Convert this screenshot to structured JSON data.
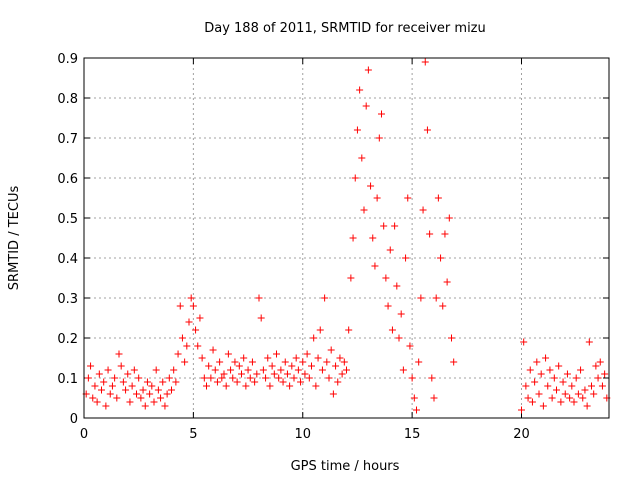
{
  "chart_data": {
    "type": "scatter",
    "title": "Day 188 of 2011, SRMTID for receiver mizu",
    "xlabel": "GPS time / hours",
    "ylabel": "SRMTID / TECUs",
    "xlim": [
      0,
      24
    ],
    "ylim": [
      0,
      0.9
    ],
    "xticks": [
      0,
      5,
      10,
      15,
      20
    ],
    "yticks": [
      0,
      0.1,
      0.2,
      0.3,
      0.4,
      0.5,
      0.6,
      0.7,
      0.8,
      0.9
    ],
    "grid": true,
    "marker": "+",
    "series": [
      {
        "name": "SRMTID",
        "color": "#ff0000",
        "points": [
          [
            0.1,
            0.06
          ],
          [
            0.2,
            0.1
          ],
          [
            0.3,
            0.13
          ],
          [
            0.4,
            0.05
          ],
          [
            0.5,
            0.08
          ],
          [
            0.6,
            0.04
          ],
          [
            0.7,
            0.11
          ],
          [
            0.8,
            0.07
          ],
          [
            0.9,
            0.09
          ],
          [
            1.0,
            0.03
          ],
          [
            1.1,
            0.12
          ],
          [
            1.2,
            0.06
          ],
          [
            1.3,
            0.08
          ],
          [
            1.4,
            0.1
          ],
          [
            1.5,
            0.05
          ],
          [
            1.6,
            0.16
          ],
          [
            1.7,
            0.13
          ],
          [
            1.8,
            0.09
          ],
          [
            1.9,
            0.07
          ],
          [
            2.0,
            0.11
          ],
          [
            2.1,
            0.04
          ],
          [
            2.2,
            0.08
          ],
          [
            2.3,
            0.12
          ],
          [
            2.4,
            0.06
          ],
          [
            2.5,
            0.1
          ],
          [
            2.6,
            0.05
          ],
          [
            2.7,
            0.07
          ],
          [
            2.8,
            0.03
          ],
          [
            2.9,
            0.09
          ],
          [
            3.0,
            0.06
          ],
          [
            3.1,
            0.08
          ],
          [
            3.2,
            0.04
          ],
          [
            3.3,
            0.12
          ],
          [
            3.4,
            0.07
          ],
          [
            3.5,
            0.05
          ],
          [
            3.6,
            0.09
          ],
          [
            3.7,
            0.03
          ],
          [
            3.8,
            0.06
          ],
          [
            3.9,
            0.1
          ],
          [
            4.0,
            0.07
          ],
          [
            4.1,
            0.12
          ],
          [
            4.2,
            0.09
          ],
          [
            4.3,
            0.16
          ],
          [
            4.4,
            0.28
          ],
          [
            4.5,
            0.2
          ],
          [
            4.6,
            0.14
          ],
          [
            4.7,
            0.18
          ],
          [
            4.8,
            0.24
          ],
          [
            4.9,
            0.3
          ],
          [
            5.0,
            0.28
          ],
          [
            5.1,
            0.22
          ],
          [
            5.2,
            0.18
          ],
          [
            5.3,
            0.25
          ],
          [
            5.4,
            0.15
          ],
          [
            5.5,
            0.1
          ],
          [
            5.6,
            0.08
          ],
          [
            5.7,
            0.13
          ],
          [
            5.8,
            0.1
          ],
          [
            5.9,
            0.17
          ],
          [
            6.0,
            0.12
          ],
          [
            6.1,
            0.09
          ],
          [
            6.2,
            0.14
          ],
          [
            6.3,
            0.1
          ],
          [
            6.4,
            0.11
          ],
          [
            6.5,
            0.08
          ],
          [
            6.6,
            0.16
          ],
          [
            6.7,
            0.12
          ],
          [
            6.8,
            0.1
          ],
          [
            6.9,
            0.14
          ],
          [
            7.0,
            0.09
          ],
          [
            7.1,
            0.13
          ],
          [
            7.2,
            0.11
          ],
          [
            7.3,
            0.15
          ],
          [
            7.4,
            0.08
          ],
          [
            7.5,
            0.12
          ],
          [
            7.6,
            0.1
          ],
          [
            7.7,
            0.14
          ],
          [
            7.8,
            0.09
          ],
          [
            7.9,
            0.11
          ],
          [
            8.0,
            0.3
          ],
          [
            8.1,
            0.25
          ],
          [
            8.2,
            0.12
          ],
          [
            8.3,
            0.1
          ],
          [
            8.4,
            0.15
          ],
          [
            8.5,
            0.08
          ],
          [
            8.6,
            0.13
          ],
          [
            8.7,
            0.11
          ],
          [
            8.8,
            0.16
          ],
          [
            8.9,
            0.1
          ],
          [
            9.0,
            0.12
          ],
          [
            9.1,
            0.09
          ],
          [
            9.2,
            0.14
          ],
          [
            9.3,
            0.11
          ],
          [
            9.4,
            0.08
          ],
          [
            9.5,
            0.13
          ],
          [
            9.6,
            0.1
          ],
          [
            9.7,
            0.15
          ],
          [
            9.8,
            0.12
          ],
          [
            9.9,
            0.09
          ],
          [
            10.0,
            0.14
          ],
          [
            10.1,
            0.11
          ],
          [
            10.2,
            0.16
          ],
          [
            10.3,
            0.1
          ],
          [
            10.4,
            0.13
          ],
          [
            10.5,
            0.2
          ],
          [
            10.6,
            0.08
          ],
          [
            10.7,
            0.15
          ],
          [
            10.8,
            0.22
          ],
          [
            10.9,
            0.12
          ],
          [
            11.0,
            0.3
          ],
          [
            11.1,
            0.14
          ],
          [
            11.2,
            0.1
          ],
          [
            11.3,
            0.17
          ],
          [
            11.4,
            0.06
          ],
          [
            11.5,
            0.13
          ],
          [
            11.6,
            0.09
          ],
          [
            11.7,
            0.15
          ],
          [
            11.8,
            0.11
          ],
          [
            11.9,
            0.14
          ],
          [
            12.0,
            0.12
          ],
          [
            12.1,
            0.22
          ],
          [
            12.2,
            0.35
          ],
          [
            12.3,
            0.45
          ],
          [
            12.4,
            0.6
          ],
          [
            12.5,
            0.72
          ],
          [
            12.6,
            0.82
          ],
          [
            12.7,
            0.65
          ],
          [
            12.8,
            0.52
          ],
          [
            12.9,
            0.78
          ],
          [
            13.0,
            0.87
          ],
          [
            13.1,
            0.58
          ],
          [
            13.2,
            0.45
          ],
          [
            13.3,
            0.38
          ],
          [
            13.4,
            0.55
          ],
          [
            13.5,
            0.7
          ],
          [
            13.6,
            0.76
          ],
          [
            13.7,
            0.48
          ],
          [
            13.8,
            0.35
          ],
          [
            13.9,
            0.28
          ],
          [
            14.0,
            0.42
          ],
          [
            14.1,
            0.22
          ],
          [
            14.2,
            0.48
          ],
          [
            14.3,
            0.33
          ],
          [
            14.4,
            0.2
          ],
          [
            14.5,
            0.26
          ],
          [
            14.6,
            0.12
          ],
          [
            14.7,
            0.4
          ],
          [
            14.8,
            0.55
          ],
          [
            14.9,
            0.18
          ],
          [
            15.0,
            0.1
          ],
          [
            15.1,
            0.05
          ],
          [
            15.2,
            0.02
          ],
          [
            15.3,
            0.14
          ],
          [
            15.4,
            0.3
          ],
          [
            15.5,
            0.52
          ],
          [
            15.6,
            0.89
          ],
          [
            15.7,
            0.72
          ],
          [
            15.8,
            0.46
          ],
          [
            15.9,
            0.1
          ],
          [
            16.0,
            0.05
          ],
          [
            16.1,
            0.3
          ],
          [
            16.2,
            0.55
          ],
          [
            16.3,
            0.4
          ],
          [
            16.4,
            0.28
          ],
          [
            16.5,
            0.46
          ],
          [
            16.6,
            0.34
          ],
          [
            16.7,
            0.5
          ],
          [
            16.8,
            0.2
          ],
          [
            16.9,
            0.14
          ],
          [
            20.0,
            0.02
          ],
          [
            20.1,
            0.19
          ],
          [
            20.2,
            0.08
          ],
          [
            20.3,
            0.05
          ],
          [
            20.4,
            0.12
          ],
          [
            20.5,
            0.04
          ],
          [
            20.6,
            0.09
          ],
          [
            20.7,
            0.14
          ],
          [
            20.8,
            0.06
          ],
          [
            20.9,
            0.11
          ],
          [
            21.0,
            0.03
          ],
          [
            21.1,
            0.15
          ],
          [
            21.2,
            0.08
          ],
          [
            21.3,
            0.12
          ],
          [
            21.4,
            0.05
          ],
          [
            21.5,
            0.1
          ],
          [
            21.6,
            0.07
          ],
          [
            21.7,
            0.13
          ],
          [
            21.8,
            0.04
          ],
          [
            21.9,
            0.09
          ],
          [
            22.0,
            0.06
          ],
          [
            22.1,
            0.11
          ],
          [
            22.2,
            0.05
          ],
          [
            22.3,
            0.08
          ],
          [
            22.4,
            0.04
          ],
          [
            22.5,
            0.1
          ],
          [
            22.6,
            0.06
          ],
          [
            22.7,
            0.12
          ],
          [
            22.8,
            0.05
          ],
          [
            22.9,
            0.07
          ],
          [
            23.0,
            0.03
          ],
          [
            23.1,
            0.19
          ],
          [
            23.2,
            0.08
          ],
          [
            23.3,
            0.06
          ],
          [
            23.4,
            0.13
          ],
          [
            23.5,
            0.1
          ],
          [
            23.6,
            0.14
          ],
          [
            23.7,
            0.08
          ],
          [
            23.8,
            0.11
          ],
          [
            23.9,
            0.05
          ]
        ]
      }
    ]
  }
}
